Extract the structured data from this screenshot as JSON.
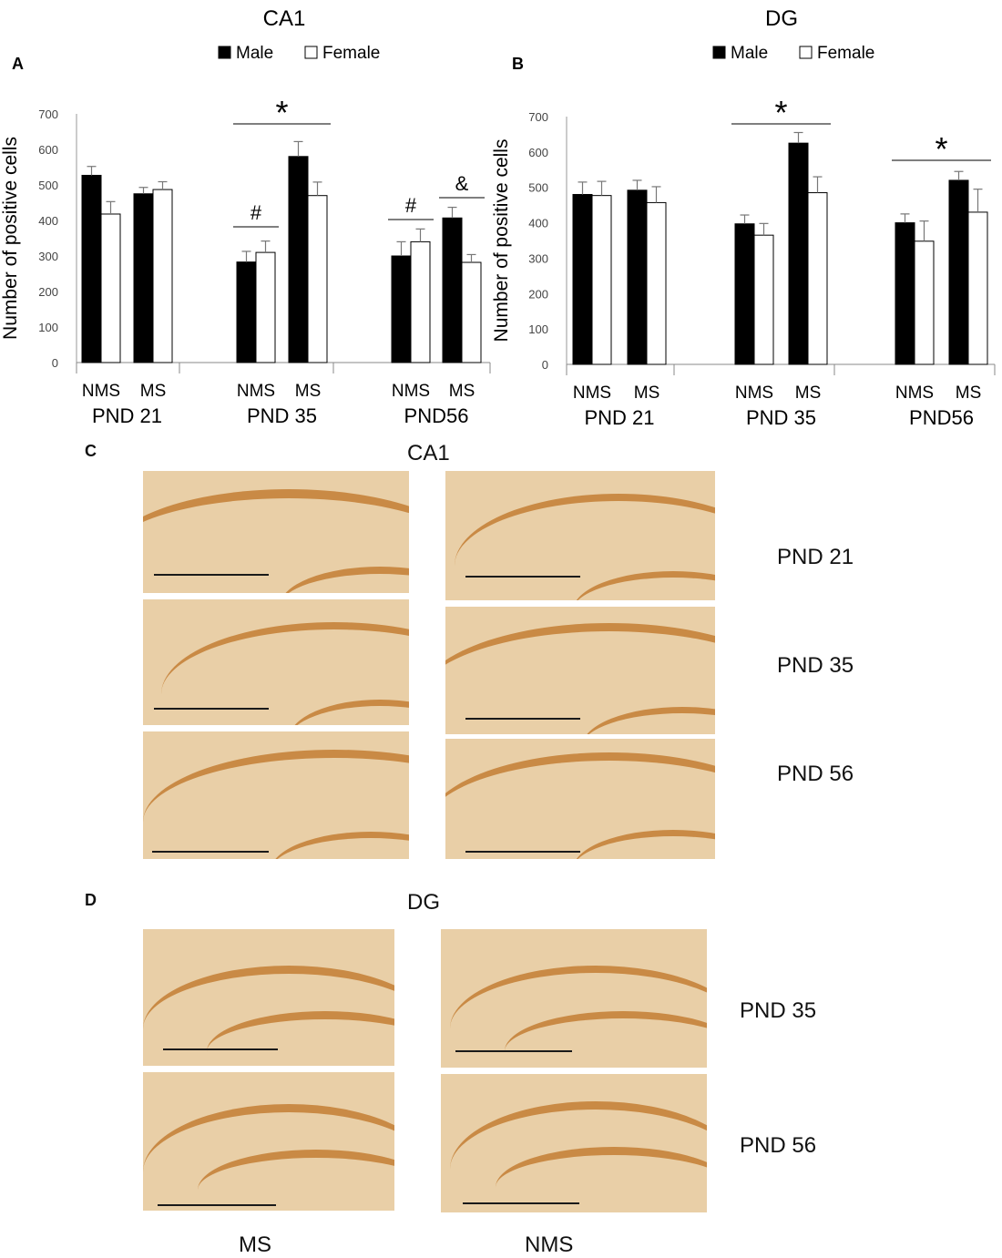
{
  "panels": {
    "a_letter": "A",
    "b_letter": "B",
    "c_letter": "C",
    "d_letter": "D",
    "c_title": "CA1",
    "d_title": "DG"
  },
  "micro_rows": {
    "c": [
      "PND 21",
      "PND 35",
      "PND 56"
    ],
    "d": [
      "PND 35",
      "PND 56"
    ],
    "d_columns": [
      "MS",
      "NMS"
    ]
  },
  "colors": {
    "male": "#000000",
    "female": "#ffffff",
    "tissue": "#e9cfa7",
    "stain": "#c98a45"
  },
  "chart_data": [
    {
      "type": "bar",
      "title": "CA1",
      "ylabel": "Number of positive cells",
      "ylim": [
        0,
        700
      ],
      "yticks": [
        0,
        100,
        200,
        300,
        400,
        500,
        600,
        700
      ],
      "groups": [
        "PND 21",
        "PND 35",
        "PND56"
      ],
      "categories": [
        "NMS",
        "MS",
        "NMS",
        "MS",
        "NMS",
        "MS"
      ],
      "legend": [
        "Male",
        "Female"
      ],
      "series": [
        {
          "name": "Male",
          "values": [
            527,
            475,
            283,
            580,
            300,
            407
          ],
          "errors": [
            25,
            18,
            30,
            42,
            40,
            30
          ]
        },
        {
          "name": "Female",
          "values": [
            418,
            487,
            310,
            470,
            340,
            282
          ],
          "errors": [
            35,
            22,
            32,
            38,
            36,
            22
          ]
        }
      ],
      "annotations": [
        {
          "text": "*",
          "from": 2,
          "to": 3
        },
        {
          "text": "#",
          "from": 2,
          "to": 2
        },
        {
          "text": "#",
          "from": 4,
          "to": 4
        },
        {
          "text": "&",
          "from": 5,
          "to": 5
        }
      ]
    },
    {
      "type": "bar",
      "title": "DG",
      "ylabel": "Number of positive cells",
      "ylim": [
        0,
        700
      ],
      "yticks": [
        0,
        100,
        200,
        300,
        400,
        500,
        600,
        700
      ],
      "groups": [
        "PND 21",
        "PND 35",
        "PND56"
      ],
      "categories": [
        "NMS",
        "MS",
        "NMS",
        "MS",
        "NMS",
        "MS"
      ],
      "legend": [
        "Male",
        "Female"
      ],
      "series": [
        {
          "name": "Male",
          "values": [
            480,
            492,
            397,
            625,
            400,
            520
          ],
          "errors": [
            35,
            28,
            25,
            30,
            25,
            25
          ]
        },
        {
          "name": "Female",
          "values": [
            477,
            457,
            365,
            485,
            348,
            430
          ],
          "errors": [
            40,
            45,
            33,
            45,
            57,
            65
          ]
        }
      ],
      "annotations": [
        {
          "text": "*",
          "from": 2,
          "to": 3
        },
        {
          "text": "*",
          "from": 4,
          "to": 5
        }
      ]
    }
  ]
}
